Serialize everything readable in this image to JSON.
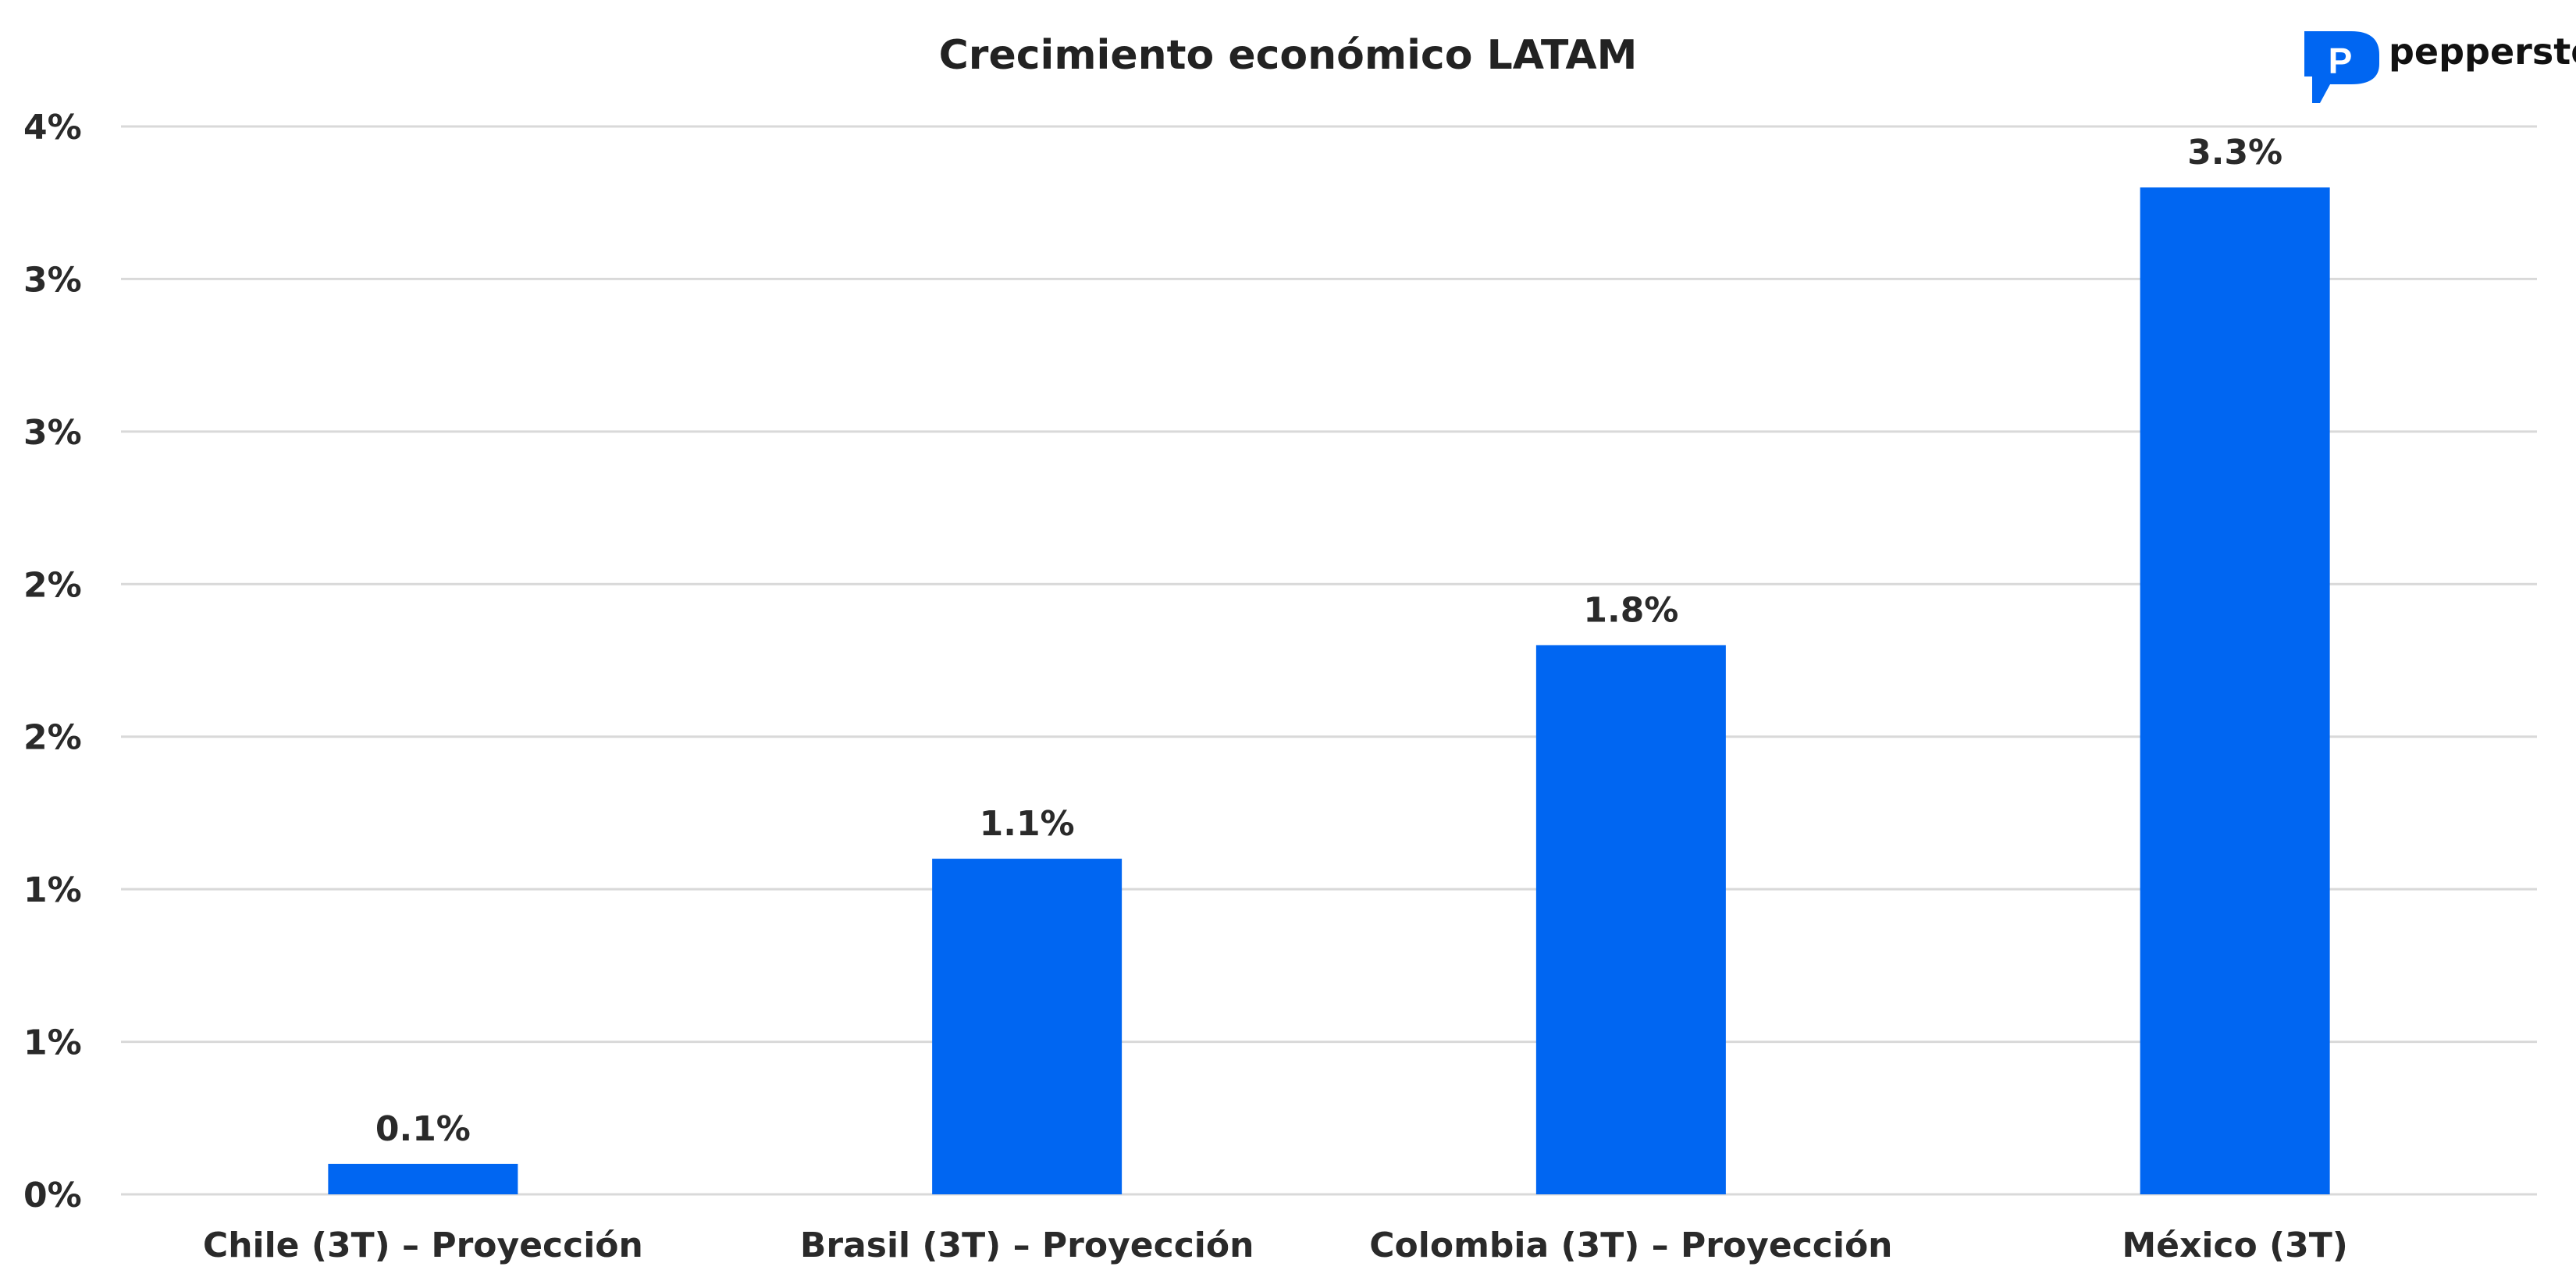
{
  "chart_data": {
    "type": "bar",
    "title": "Crecimiento económico LATAM",
    "categories": [
      "Chile (3T) – Proyección",
      "Brasil (3T) – Proyección",
      "Colombia (3T) – Proyección",
      "México (3T)"
    ],
    "values": [
      0.1,
      1.1,
      1.8,
      3.3
    ],
    "value_labels": [
      "0.1%",
      "1.1%",
      "1.8%",
      "3.3%"
    ],
    "ylim": [
      0,
      3.5
    ],
    "ytick_values": [
      0,
      0.5,
      1.0,
      1.5,
      2.0,
      2.5,
      3.0,
      3.5
    ],
    "ytick_labels": [
      "0%",
      "1%",
      "1%",
      "2%",
      "2%",
      "3%",
      "3%",
      "4%"
    ],
    "grid": true,
    "legend": "none",
    "bar_color": "#0066F2"
  },
  "brand": {
    "name": "pepperstone",
    "logo_icon": "pepperstone-p-logo-icon",
    "logo_color": "#0066F2"
  }
}
